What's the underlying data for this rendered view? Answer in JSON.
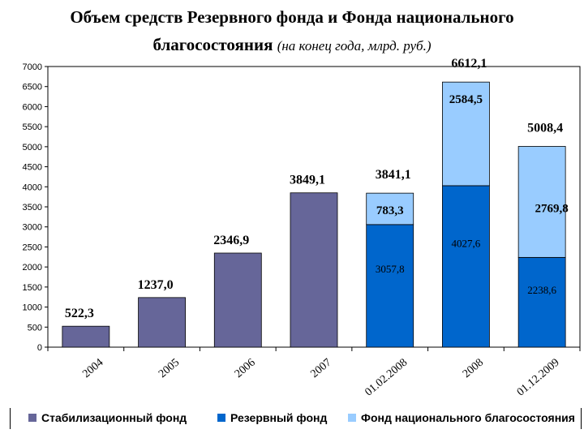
{
  "title": {
    "main_line1": "Объем средств Резервного фонда и Фонда национального",
    "main_line2": "благосостояния",
    "subtitle": "(на конец года, млрд. руб.)"
  },
  "colors": {
    "stabilization": "#666699",
    "reserve": "#0066CC",
    "nwf": "#99CCFF"
  },
  "chart_data": {
    "type": "bar",
    "stacked": true,
    "title": "Объем средств Резервного фонда и Фонда национального благосостояния (на конец года, млрд. руб.)",
    "categories": [
      "2004",
      "2005",
      "2006",
      "2007",
      "01.02.2008",
      "2008",
      "01.12.2009"
    ],
    "series": [
      {
        "name": "Стабилизационный фонд",
        "values": [
          522.3,
          1237.0,
          2346.9,
          3849.1,
          null,
          null,
          null
        ]
      },
      {
        "name": "Резервный фонд",
        "values": [
          null,
          null,
          null,
          null,
          3057.8,
          4027.6,
          2238.6
        ]
      },
      {
        "name": "Фонд национального благосостояния",
        "values": [
          null,
          null,
          null,
          null,
          783.3,
          2584.5,
          2769.8
        ]
      }
    ],
    "totals": [
      null,
      null,
      null,
      null,
      3841.1,
      6612.1,
      5008.4
    ],
    "ylim": [
      0,
      7000
    ],
    "ytick_step": 500,
    "grid": false,
    "legend_position": "bottom",
    "labels": {
      "stabilization": [
        "522,3",
        "1237,0",
        "2346,9",
        "3849,1",
        "",
        "",
        ""
      ],
      "reserve": [
        "",
        "",
        "",
        "",
        "3057,8",
        "4027,6",
        "2238,6"
      ],
      "nwf": [
        "",
        "",
        "",
        "",
        "783,3",
        "2584,5",
        "2769,8"
      ],
      "totals": [
        "",
        "",
        "",
        "",
        "3841,1",
        "6612,1",
        "5008,4"
      ]
    }
  }
}
